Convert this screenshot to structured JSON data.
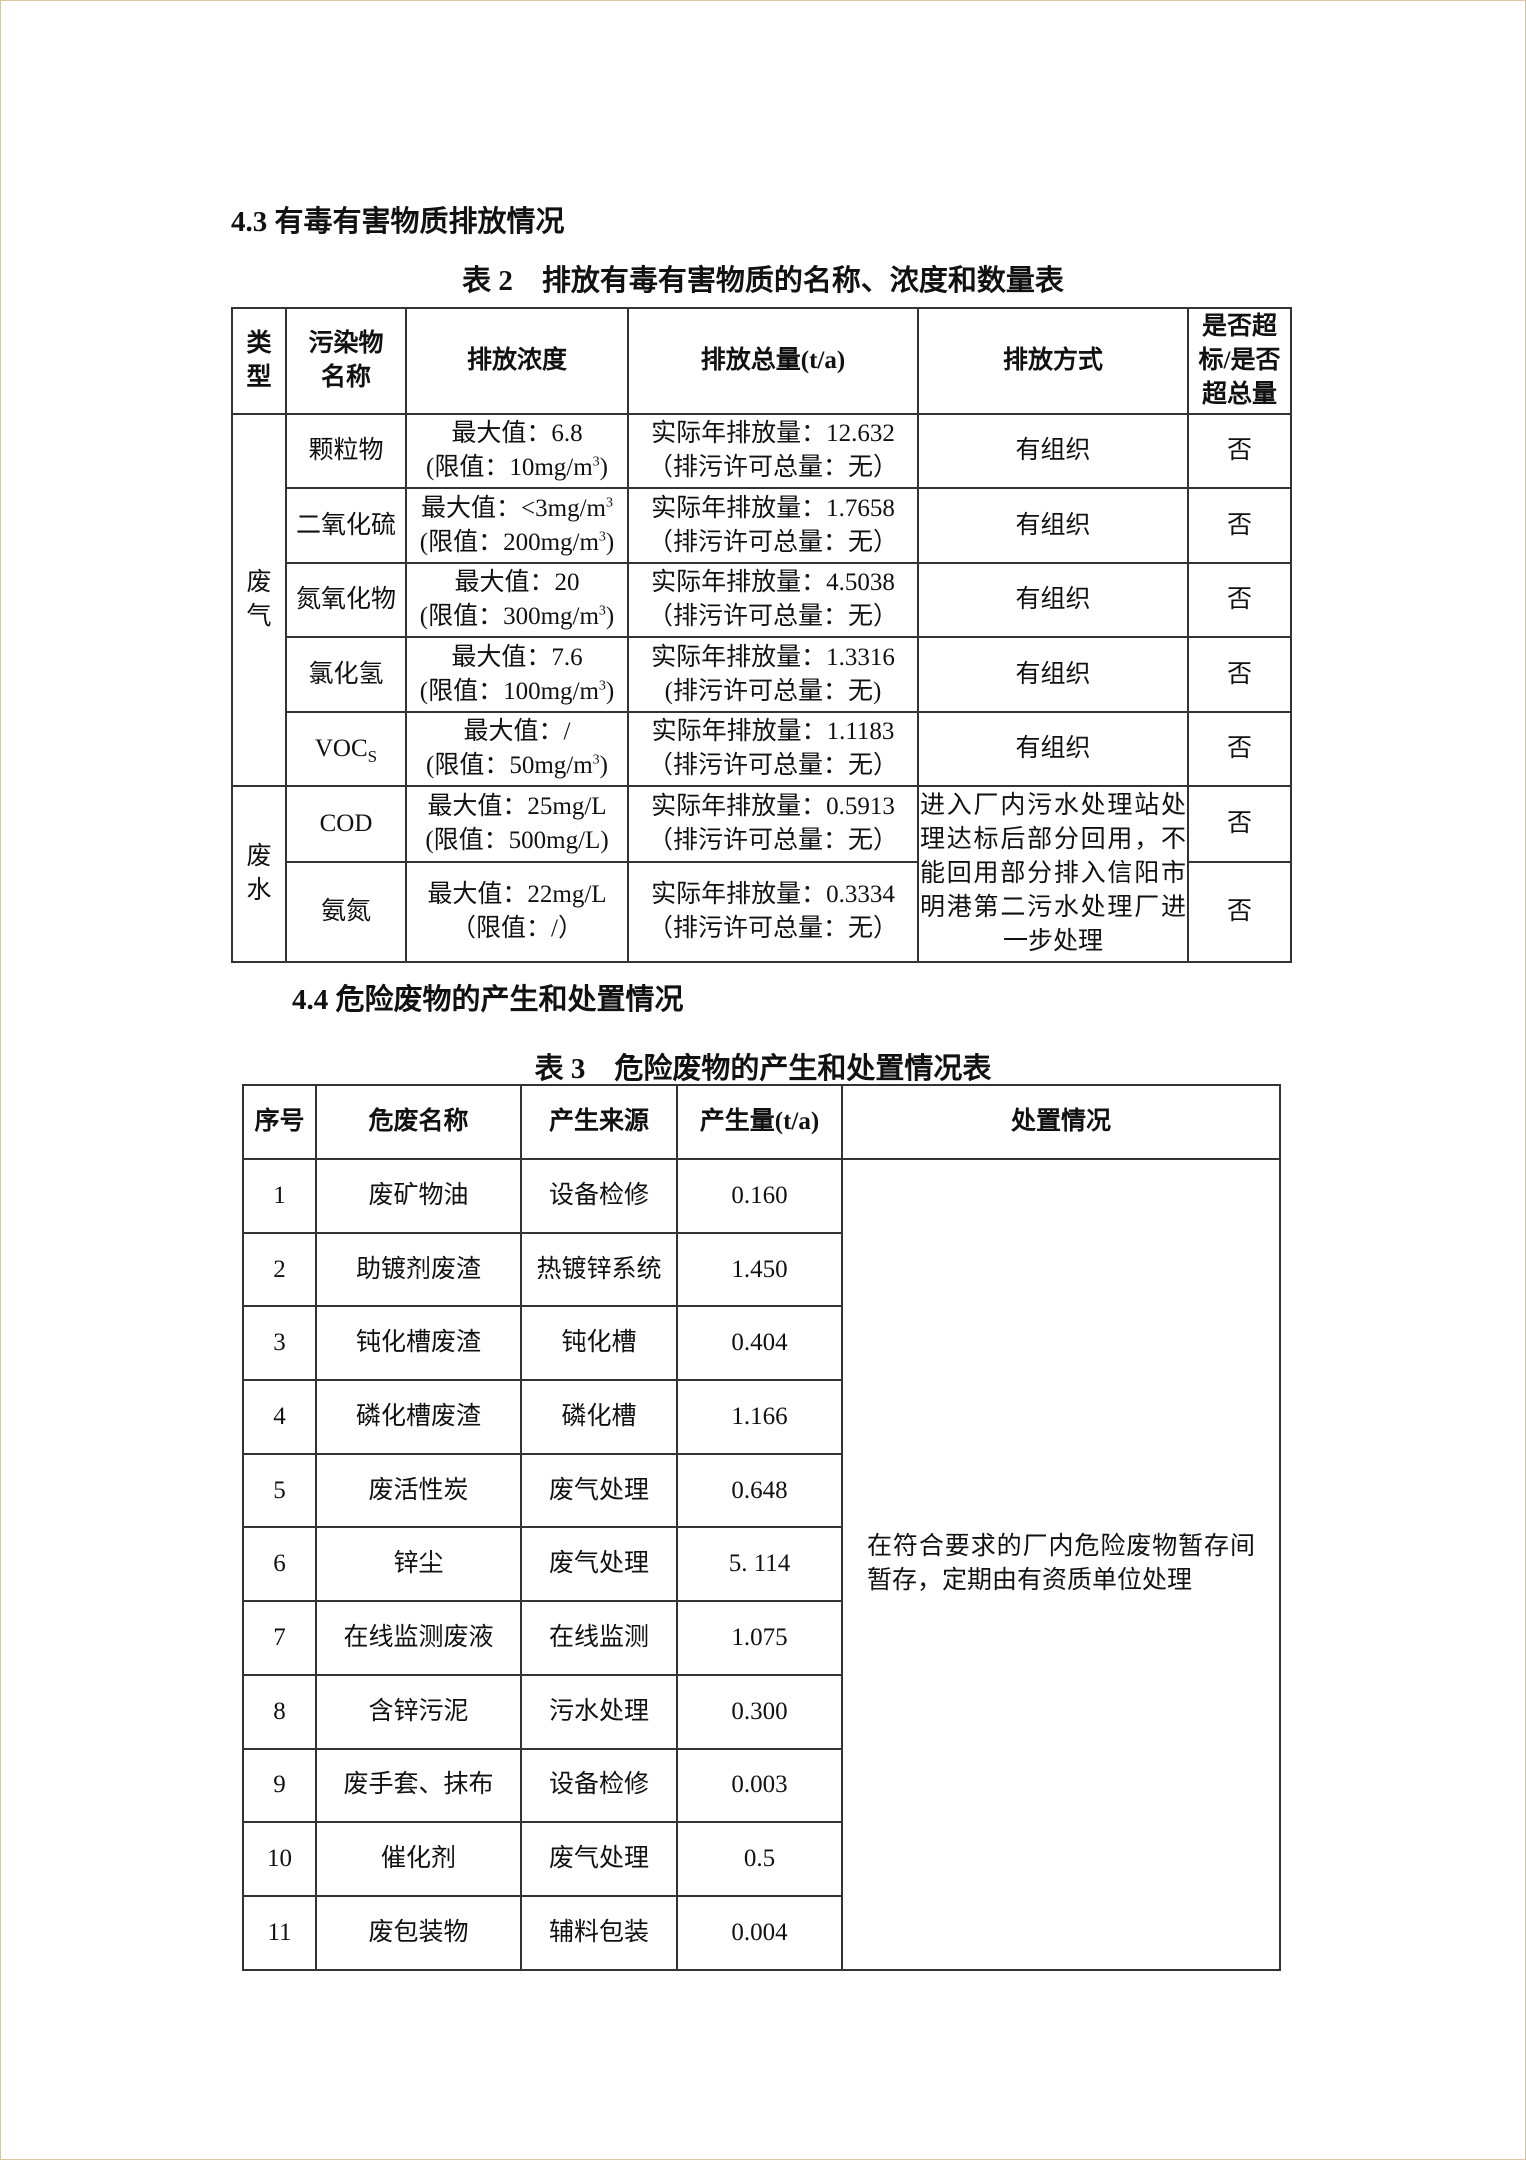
{
  "section_43": "4.3 有毒有害物质排放情况",
  "table2": {
    "caption": "表 2　排放有毒有害物质的名称、浓度和数量表",
    "headers": [
      "类型",
      "污染物名称",
      "排放浓度",
      "排放总量(t/a)",
      "排放方式",
      "是否超标/是否超总量"
    ],
    "header_lines": {
      "type": [
        "类",
        "型"
      ],
      "name": [
        "污染物",
        "名称"
      ],
      "exceed": [
        "是否超",
        "标/是否",
        "超总量"
      ]
    },
    "groups": [
      {
        "type": "废气",
        "type_lines": [
          "废",
          "气"
        ]
      },
      {
        "type": "废水",
        "type_lines": [
          "废",
          "水"
        ]
      }
    ],
    "rows": [
      {
        "name": "颗粒物",
        "conc1": "最大值：6.8",
        "conc2": "(限值：10mg/m",
        "conc_sup": "3",
        "conc_end": ")",
        "total1": "实际年排放量：12.632",
        "total2": "（排污许可总量：无）",
        "method": "有组织",
        "exceed": "否"
      },
      {
        "name": "二氧化硫",
        "conc1": "最大值：<3mg/m",
        "conc1_sup": "3",
        "conc2": "(限值：200mg/m",
        "conc_sup": "3",
        "conc_end": ")",
        "total1": "实际年排放量：1.7658",
        "total2": "（排污许可总量：无）",
        "method": "有组织",
        "exceed": "否"
      },
      {
        "name": "氮氧化物",
        "conc1": "最大值：20",
        "conc2": "(限值：300mg/m",
        "conc_sup": "3",
        "conc_end": ")",
        "total1": "实际年排放量：4.5038",
        "total2": "（排污许可总量：无）",
        "method": "有组织",
        "exceed": "否"
      },
      {
        "name": "氯化氢",
        "conc1": "最大值：7.6",
        "conc2": "(限值：100mg/m",
        "conc_sup": "3",
        "conc_end": ")",
        "total1": "实际年排放量：1.3316",
        "total2": "(排污许可总量：无)",
        "method": "有组织",
        "exceed": "否"
      },
      {
        "name": "VOC",
        "name_sub": "S",
        "conc1": "最大值：/",
        "conc2": "(限值：50mg/m",
        "conc_sup": "3",
        "conc_end": ")",
        "total1": "实际年排放量：1.1183",
        "total2": "（排污许可总量：无）",
        "method": "有组织",
        "exceed": "否"
      },
      {
        "name": "COD",
        "conc1": "最大值：25mg/L",
        "conc2": "(限值：500mg/L)",
        "total1": "实际年排放量：0.5913",
        "total2": "（排污许可总量：无）",
        "exceed": "否"
      },
      {
        "name": "氨氮",
        "conc1": "最大值：22mg/L",
        "conc2": "（限值：/）",
        "total1": "实际年排放量：0.3334",
        "total2": "（排污许可总量：无）",
        "exceed": "否"
      }
    ],
    "water_method": "进入厂内污水处理站处理达标后部分回用，不能回用部分排入信阳市明港第二污水处理厂进一步处理"
  },
  "section_44": "4.4 危险废物的产生和处置情况",
  "table3": {
    "caption": "表 3　危险废物的产生和处置情况表",
    "headers": [
      "序号",
      "危废名称",
      "产生来源",
      "产生量(t/a)",
      "处置情况"
    ],
    "rows": [
      [
        "1",
        "废矿物油",
        "设备检修",
        "0.160"
      ],
      [
        "2",
        "助镀剂废渣",
        "热镀锌系统",
        "1.450"
      ],
      [
        "3",
        "钝化槽废渣",
        "钝化槽",
        "0.404"
      ],
      [
        "4",
        "磷化槽废渣",
        "磷化槽",
        "1.166"
      ],
      [
        "5",
        "废活性炭",
        "废气处理",
        "0.648"
      ],
      [
        "6",
        "锌尘",
        "废气处理",
        "5. 114"
      ],
      [
        "7",
        "在线监测废液",
        "在线监测",
        "1.075"
      ],
      [
        "8",
        "含锌污泥",
        "污水处理",
        "0.300"
      ],
      [
        "9",
        "废手套、抹布",
        "设备检修",
        "0.003"
      ],
      [
        "10",
        "催化剂",
        "废气处理",
        "0.5"
      ],
      [
        "11",
        "废包装物",
        "辅料包装",
        "0.004"
      ]
    ],
    "disposal": "在符合要求的厂内危险废物暂存间暂存，定期由有资质单位处理"
  }
}
